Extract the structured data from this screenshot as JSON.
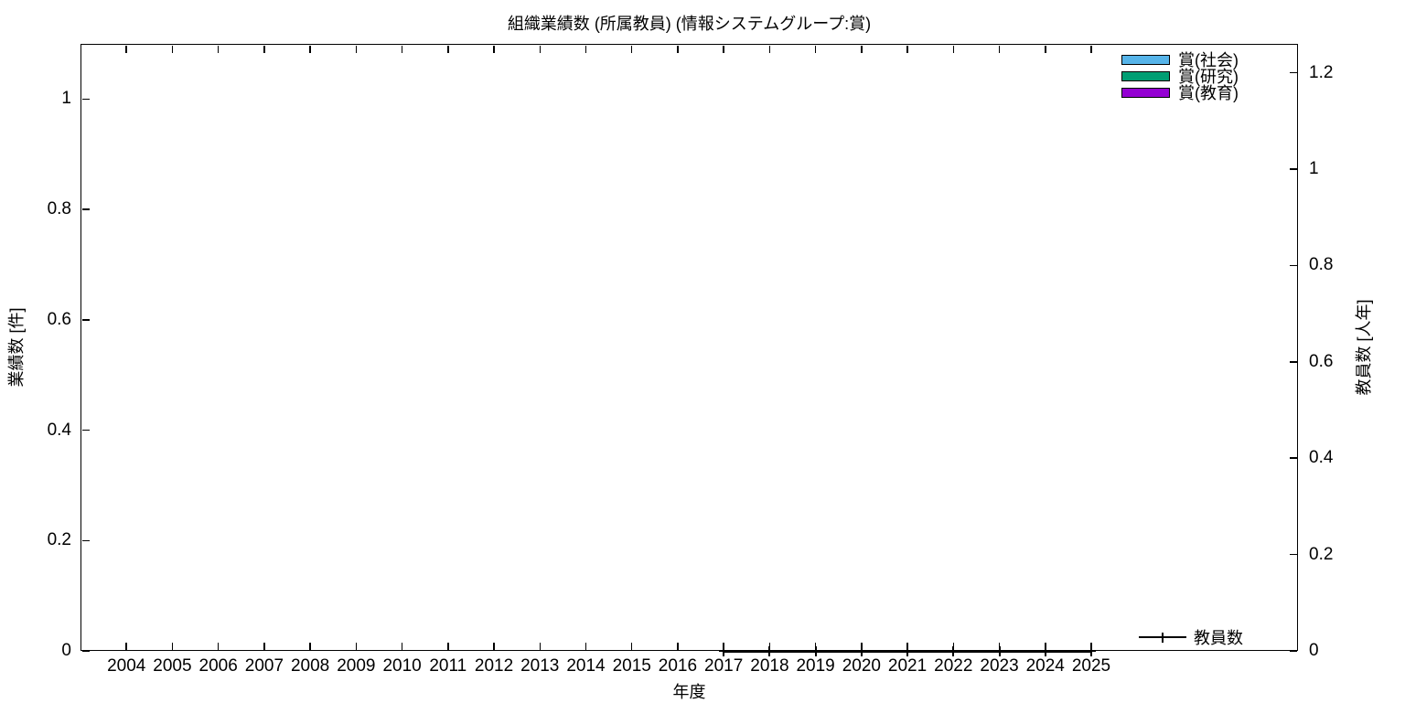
{
  "chart_data": {
    "type": "bar+line",
    "title": "組織業績数 (所属教員) (情報システムグループ:賞)",
    "xlabel": "年度",
    "ylabel": "業績数 [件]",
    "y2label": "教員数 [人年]",
    "categories": [
      2004,
      2005,
      2006,
      2007,
      2008,
      2009,
      2010,
      2011,
      2012,
      2013,
      2014,
      2015,
      2016,
      2017,
      2018,
      2019,
      2020,
      2021,
      2022,
      2023,
      2024,
      2025
    ],
    "xlim": [
      2003,
      2029.5
    ],
    "ylim": [
      0,
      1.1
    ],
    "y2lim": [
      0,
      1.26
    ],
    "yticks": [
      0,
      0.2,
      0.4,
      0.6,
      0.8,
      1
    ],
    "y2ticks": [
      0,
      0.2,
      0.4,
      0.6,
      0.8,
      1,
      1.2
    ],
    "grid": false,
    "legend_position": "top-right",
    "bar_series": [
      {
        "name": "賞(社会)",
        "color": "#56b4e9",
        "values": [
          0,
          0,
          0,
          0,
          0,
          0,
          0,
          0,
          0,
          0,
          0,
          0,
          0,
          0,
          0,
          0,
          0,
          0,
          0,
          0,
          0,
          0
        ]
      },
      {
        "name": "賞(研究)",
        "color": "#009e73",
        "values": [
          0,
          0,
          0,
          0,
          0,
          0,
          0,
          0,
          0,
          0,
          0,
          0,
          0,
          0,
          0,
          0,
          0,
          0,
          0,
          0,
          0,
          0
        ]
      },
      {
        "name": "賞(教育)",
        "color": "#9400d3",
        "values": [
          0,
          0,
          0,
          0,
          0,
          0,
          0,
          0,
          0,
          0,
          0,
          0,
          0,
          0,
          0,
          0,
          0,
          0,
          0,
          0,
          0,
          0
        ]
      }
    ],
    "line_series": {
      "name": "教員数",
      "color": "#000000",
      "axis": "y2",
      "x": [
        2017,
        2018,
        2019,
        2020,
        2021,
        2022,
        2023,
        2024,
        2025
      ],
      "y": [
        0,
        0,
        0,
        0,
        0,
        0,
        0,
        0,
        0
      ]
    }
  }
}
